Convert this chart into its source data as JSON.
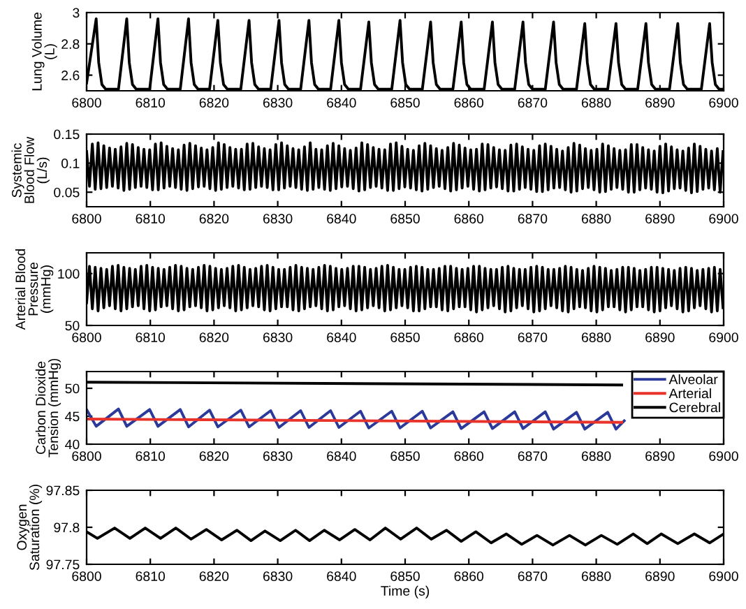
{
  "chart_data": [
    {
      "type": "line",
      "ylabel": "Lung Volume\n(L)",
      "xlim": [
        6800,
        6900
      ],
      "xticks": [
        6800,
        6810,
        6820,
        6830,
        6840,
        6850,
        6860,
        6870,
        6880,
        6890,
        6900
      ],
      "ylim": [
        2.5,
        3
      ],
      "yticks": [
        2.6,
        2.8,
        3
      ],
      "series": [
        {
          "color": "#000000",
          "x": [
            6800,
            6801.5,
            6801.9,
            6802.4,
            6803.0,
            6805.0,
            6806.3,
            6806.7,
            6807.2,
            6807.8,
            6809.9,
            6811.2,
            6811.6,
            6812.1,
            6812.7,
            6814.7,
            6816.0,
            6816.4,
            6816.9,
            6817.5,
            6819.3,
            6820.6,
            6821.0,
            6821.5,
            6822.1,
            6824.2,
            6825.5,
            6825.9,
            6826.4,
            6827.0,
            6828.9,
            6830.2,
            6830.6,
            6831.1,
            6831.7,
            6833.6,
            6834.9,
            6835.3,
            6835.8,
            6836.4,
            6838.3,
            6839.6,
            6840.0,
            6840.5,
            6841.1,
            6843.0,
            6844.3,
            6844.7,
            6845.2,
            6845.8,
            6847.9,
            6849.2,
            6849.6,
            6850.1,
            6850.7,
            6852.7,
            6854.0,
            6854.4,
            6854.9,
            6855.5,
            6857.5,
            6858.8,
            6859.2,
            6859.7,
            6860.3,
            6862.4,
            6863.7,
            6864.1,
            6864.6,
            6865.2,
            6867.2,
            6868.5,
            6868.9,
            6869.4,
            6870.0,
            6872.0,
            6873.3,
            6873.7,
            6874.2,
            6874.8,
            6876.9,
            6878.2,
            6878.6,
            6879.1,
            6879.7,
            6881.8,
            6883.1,
            6883.5,
            6884.0,
            6884.6,
            6886.5,
            6887.8,
            6888.2,
            6888.7,
            6889.3,
            6891.5,
            6892.8,
            6893.2,
            6893.7,
            6894.3,
            6896.5,
            6897.8,
            6898.2,
            6898.7,
            6899.3,
            6900
          ],
          "values": [
            2.55,
            2.96,
            2.68,
            2.54,
            2.51,
            2.51,
            2.96,
            2.68,
            2.54,
            2.51,
            2.51,
            2.96,
            2.68,
            2.54,
            2.51,
            2.51,
            2.96,
            2.68,
            2.54,
            2.51,
            2.51,
            2.95,
            2.68,
            2.54,
            2.51,
            2.51,
            2.95,
            2.68,
            2.54,
            2.51,
            2.51,
            2.95,
            2.68,
            2.54,
            2.51,
            2.51,
            2.95,
            2.68,
            2.54,
            2.51,
            2.51,
            2.95,
            2.68,
            2.54,
            2.51,
            2.51,
            2.94,
            2.68,
            2.54,
            2.51,
            2.51,
            2.95,
            2.68,
            2.54,
            2.51,
            2.51,
            2.94,
            2.68,
            2.54,
            2.51,
            2.51,
            2.94,
            2.68,
            2.54,
            2.51,
            2.51,
            2.94,
            2.68,
            2.54,
            2.51,
            2.51,
            2.94,
            2.68,
            2.54,
            2.51,
            2.51,
            2.94,
            2.68,
            2.54,
            2.51,
            2.51,
            2.93,
            2.68,
            2.54,
            2.51,
            2.51,
            2.93,
            2.68,
            2.54,
            2.51,
            2.51,
            2.93,
            2.68,
            2.54,
            2.51,
            2.51,
            2.93,
            2.68,
            2.54,
            2.51,
            2.51,
            2.93,
            2.68,
            2.54,
            2.51,
            2.51
          ]
        }
      ]
    },
    {
      "type": "line",
      "ylabel": "Systemic\nBlood Flow\n(L/s)",
      "xlim": [
        6800,
        6900
      ],
      "xticks": [
        6800,
        6810,
        6820,
        6830,
        6840,
        6850,
        6860,
        6870,
        6880,
        6890,
        6900
      ],
      "ylim": [
        0.025,
        0.15
      ],
      "yticks": [
        0.05,
        0.1,
        0.15
      ],
      "series": [
        {
          "color": "#000000",
          "x": [
            6800,
            6800.45,
            6800.9,
            6801.35,
            6801.8,
            6802.25,
            6802.7,
            6803.15,
            6803.6,
            6804.05,
            6804.5,
            6804.95,
            6805.4,
            6805.85,
            6806.3,
            6806.75,
            6807.2,
            6807.65,
            6808.1,
            6808.55,
            6809,
            6809.45,
            6809.9,
            6810.35,
            6810.8,
            6811.25,
            6811.7,
            6812.15,
            6812.6,
            6813.05,
            6813.5,
            6813.95,
            6814.4,
            6814.85,
            6815.3,
            6815.75,
            6816.2,
            6816.65,
            6817.1,
            6817.55,
            6818,
            6818.45,
            6818.9,
            6819.35,
            6819.8,
            6820.25,
            6820.7,
            6821.15,
            6821.6,
            6822.05,
            6822.5,
            6822.95,
            6823.4,
            6823.85,
            6824.3,
            6824.75,
            6825.2,
            6825.65,
            6826.1,
            6826.55,
            6827,
            6827.45,
            6827.9,
            6828.35,
            6828.8,
            6829.25,
            6829.7,
            6830.15,
            6830.6,
            6831.05,
            6831.5,
            6831.95,
            6832.4,
            6832.85,
            6833.3,
            6833.75,
            6834.2,
            6834.65,
            6835.1,
            6835.55,
            6836,
            6836.45,
            6836.9,
            6837.35,
            6837.8,
            6838.25,
            6838.7,
            6839.15,
            6839.6,
            6840.05,
            6840.5,
            6840.95,
            6841.4,
            6841.85,
            6842.3,
            6842.75,
            6843.2,
            6843.65,
            6844.1,
            6844.55,
            6845,
            6845.45,
            6845.9,
            6846.35,
            6846.8,
            6847.25,
            6847.7,
            6848.15,
            6848.6,
            6849.05,
            6849.5,
            6849.95,
            6850.4,
            6850.85,
            6851.3,
            6851.75,
            6852.2,
            6852.65,
            6853.1,
            6853.55,
            6854,
            6854.45,
            6854.9,
            6855.35,
            6855.8,
            6856.25,
            6856.7,
            6857.15,
            6857.6,
            6858.05,
            6858.5,
            6858.95,
            6859.4,
            6859.85,
            6860.3,
            6860.75,
            6861.2,
            6861.65,
            6862.1,
            6862.55,
            6863,
            6863.45,
            6863.9,
            6864.35,
            6864.8,
            6865.25,
            6865.7,
            6866.15,
            6866.6,
            6867.05,
            6867.5,
            6867.95,
            6868.4,
            6868.85,
            6869.3,
            6869.75,
            6870.2,
            6870.65,
            6871.1,
            6871.55,
            6872,
            6872.45,
            6872.9,
            6873.35,
            6873.8,
            6874.25,
            6874.7,
            6875.15,
            6875.6,
            6876.05,
            6876.5,
            6876.95,
            6877.4,
            6877.85,
            6878.3,
            6878.75,
            6879.2,
            6879.65,
            6880.1,
            6880.55,
            6881,
            6881.45,
            6881.9,
            6882.35,
            6882.8,
            6883.25,
            6883.7,
            6884.15,
            6884.6,
            6885.05,
            6885.5,
            6885.95,
            6886.4,
            6886.85,
            6887.3,
            6887.75,
            6888.2,
            6888.65,
            6889.1,
            6889.55,
            6890,
            6890.45,
            6890.9,
            6891.35,
            6891.8,
            6892.25,
            6892.7,
            6893.15,
            6893.6,
            6894.05,
            6894.5,
            6894.95,
            6895.4,
            6895.85,
            6896.3,
            6896.75,
            6897.2,
            6897.65,
            6898.1,
            6898.55,
            6899,
            6899.45,
            6899.9
          ],
          "values": [
            0.12,
            0.06,
            0.133,
            0.055,
            0.135,
            0.056,
            0.13,
            0.058,
            0.126,
            0.06,
            0.124,
            0.057,
            0.128,
            0.053,
            0.134,
            0.055,
            0.132,
            0.058,
            0.127,
            0.06,
            0.124,
            0.058,
            0.123,
            0.054,
            0.133,
            0.054,
            0.135,
            0.057,
            0.129,
            0.06,
            0.125,
            0.058,
            0.123,
            0.055,
            0.131,
            0.053,
            0.134,
            0.056,
            0.13,
            0.059,
            0.126,
            0.06,
            0.123,
            0.056,
            0.127,
            0.053,
            0.135,
            0.055,
            0.132,
            0.058,
            0.127,
            0.06,
            0.124,
            0.057,
            0.124,
            0.054,
            0.133,
            0.055,
            0.134,
            0.058,
            0.128,
            0.06,
            0.125,
            0.058,
            0.123,
            0.054,
            0.132,
            0.054,
            0.135,
            0.057,
            0.13,
            0.06,
            0.125,
            0.058,
            0.123,
            0.055,
            0.128,
            0.053,
            0.135,
            0.055,
            0.124,
            0.058,
            0.123,
            0.055,
            0.13,
            0.053,
            0.134,
            0.056,
            0.13,
            0.059,
            0.125,
            0.06,
            0.122,
            0.056,
            0.126,
            0.052,
            0.135,
            0.054,
            0.132,
            0.058,
            0.127,
            0.06,
            0.124,
            0.057,
            0.123,
            0.053,
            0.133,
            0.053,
            0.135,
            0.056,
            0.129,
            0.059,
            0.124,
            0.057,
            0.122,
            0.054,
            0.13,
            0.052,
            0.134,
            0.055,
            0.13,
            0.058,
            0.125,
            0.06,
            0.122,
            0.056,
            0.127,
            0.052,
            0.134,
            0.054,
            0.131,
            0.057,
            0.126,
            0.06,
            0.123,
            0.055,
            0.124,
            0.052,
            0.133,
            0.054,
            0.132,
            0.057,
            0.127,
            0.059,
            0.123,
            0.056,
            0.122,
            0.052,
            0.131,
            0.052,
            0.133,
            0.055,
            0.128,
            0.058,
            0.124,
            0.055,
            0.122,
            0.051,
            0.13,
            0.051,
            0.133,
            0.054,
            0.129,
            0.057,
            0.124,
            0.058,
            0.121,
            0.054,
            0.127,
            0.05,
            0.134,
            0.052,
            0.131,
            0.056,
            0.125,
            0.058,
            0.122,
            0.054,
            0.124,
            0.05,
            0.133,
            0.051,
            0.13,
            0.055,
            0.125,
            0.058,
            0.122,
            0.055,
            0.123,
            0.05,
            0.132,
            0.05,
            0.132,
            0.054,
            0.127,
            0.057,
            0.123,
            0.055,
            0.121,
            0.05,
            0.129,
            0.049,
            0.133,
            0.052,
            0.128,
            0.056,
            0.123,
            0.057,
            0.121,
            0.053,
            0.126,
            0.049,
            0.133,
            0.051,
            0.129,
            0.055,
            0.124,
            0.057,
            0.121,
            0.054,
            0.125,
            0.05,
            0.12
          ]
        }
      ]
    },
    {
      "type": "line",
      "ylabel": "Arterial Blood\nPressure\n(mmHg)",
      "xlim": [
        6800,
        6900
      ],
      "xticks": [
        6800,
        6810,
        6820,
        6830,
        6840,
        6850,
        6860,
        6870,
        6880,
        6890,
        6900
      ],
      "ylim": [
        50,
        120
      ],
      "yticks": [
        50,
        100
      ],
      "series": [
        {
          "color": "#000000",
          "x": [
            6800,
            6800.45,
            6800.9,
            6801.35,
            6801.8,
            6802.25,
            6802.7,
            6803.15,
            6803.6,
            6804.05,
            6804.5,
            6804.95,
            6805.4,
            6805.85,
            6806.3,
            6806.75,
            6807.2,
            6807.65,
            6808.1,
            6808.55,
            6809,
            6809.45,
            6809.9,
            6810.35,
            6810.8,
            6811.25,
            6811.7,
            6812.15,
            6812.6,
            6813.05,
            6813.5,
            6813.95,
            6814.4,
            6814.85,
            6815.3,
            6815.75,
            6816.2,
            6816.65,
            6817.1,
            6817.55,
            6818,
            6818.45,
            6818.9,
            6819.35,
            6819.8,
            6820.25,
            6820.7,
            6821.15,
            6821.6,
            6822.05,
            6822.5,
            6822.95,
            6823.4,
            6823.85,
            6824.3,
            6824.75,
            6825.2,
            6825.65,
            6826.1,
            6826.55,
            6827,
            6827.45,
            6827.9,
            6828.35,
            6828.8,
            6829.25,
            6829.7,
            6830.15,
            6830.6,
            6831.05,
            6831.5,
            6831.95,
            6832.4,
            6832.85,
            6833.3,
            6833.75,
            6834.2,
            6834.65,
            6835.1,
            6835.55,
            6836,
            6836.45,
            6836.9,
            6837.35,
            6837.8,
            6838.25,
            6838.7,
            6839.15,
            6839.6,
            6840.05,
            6840.5,
            6840.95,
            6841.4,
            6841.85,
            6842.3,
            6842.75,
            6843.2,
            6843.65,
            6844.1,
            6844.55,
            6845,
            6845.45,
            6845.9,
            6846.35,
            6846.8,
            6847.25,
            6847.7,
            6848.15,
            6848.6,
            6849.05,
            6849.5,
            6849.95,
            6850.4,
            6850.85,
            6851.3,
            6851.75,
            6852.2,
            6852.65,
            6853.1,
            6853.55,
            6854,
            6854.45,
            6854.9,
            6855.35,
            6855.8,
            6856.25,
            6856.7,
            6857.15,
            6857.6,
            6858.05,
            6858.5,
            6858.95,
            6859.4,
            6859.85,
            6860.3,
            6860.75,
            6861.2,
            6861.65,
            6862.1,
            6862.55,
            6863,
            6863.45,
            6863.9,
            6864.35,
            6864.8,
            6865.25,
            6865.7,
            6866.15,
            6866.6,
            6867.05,
            6867.5,
            6867.95,
            6868.4,
            6868.85,
            6869.3,
            6869.75,
            6870.2,
            6870.65,
            6871.1,
            6871.55,
            6872,
            6872.45,
            6872.9,
            6873.35,
            6873.8,
            6874.25,
            6874.7,
            6875.15,
            6875.6,
            6876.05,
            6876.5,
            6876.95,
            6877.4,
            6877.85,
            6878.3,
            6878.75,
            6879.2,
            6879.65,
            6880.1,
            6880.55,
            6881,
            6881.45,
            6881.9,
            6882.35,
            6882.8,
            6883.25,
            6883.7,
            6884.15,
            6884.6,
            6885.05,
            6885.5,
            6885.95,
            6886.4,
            6886.85,
            6887.3,
            6887.75,
            6888.2,
            6888.65,
            6889.1,
            6889.55,
            6890,
            6890.45,
            6890.9,
            6891.35,
            6891.8,
            6892.25,
            6892.7,
            6893.15,
            6893.6,
            6894.05,
            6894.5,
            6894.95,
            6895.4,
            6895.85,
            6896.3,
            6896.75,
            6897.2,
            6897.65,
            6898.1,
            6898.55,
            6899,
            6899.45,
            6899.9
          ],
          "values": [
            72,
            107,
            66,
            106,
            64,
            105,
            67,
            104,
            69,
            107,
            66,
            108,
            64,
            106,
            66,
            105,
            68,
            104,
            69,
            107,
            66,
            108,
            64,
            106,
            65,
            105,
            68,
            104,
            69,
            106,
            66,
            108,
            64,
            107,
            65,
            105,
            68,
            104,
            69,
            106,
            67,
            108,
            64,
            107,
            65,
            105,
            67,
            104,
            69,
            105,
            67,
            107,
            64,
            108,
            65,
            106,
            67,
            104,
            69,
            105,
            68,
            107,
            65,
            108,
            64,
            106,
            66,
            104,
            68,
            104,
            68,
            106,
            65,
            108,
            64,
            106,
            66,
            105,
            68,
            104,
            69,
            106,
            66,
            108,
            64,
            107,
            65,
            105,
            68,
            104,
            69,
            105,
            66,
            107,
            64,
            107,
            65,
            106,
            67,
            104,
            69,
            105,
            67,
            107,
            64,
            108,
            65,
            106,
            67,
            104,
            69,
            104,
            67,
            106,
            64,
            107,
            64,
            106,
            66,
            104,
            68,
            104,
            68,
            105,
            65,
            107,
            64,
            107,
            66,
            105,
            68,
            104,
            68,
            105,
            65,
            107,
            63,
            107,
            65,
            105,
            67,
            104,
            69,
            104,
            66,
            106,
            63,
            107,
            64,
            105,
            67,
            104,
            69,
            104,
            66,
            106,
            63,
            107,
            64,
            106,
            66,
            104,
            69,
            104,
            67,
            105,
            64,
            107,
            63,
            106,
            66,
            104,
            68,
            103,
            67,
            105,
            64,
            107,
            63,
            106,
            65,
            105,
            68,
            103,
            68,
            104,
            65,
            106,
            63,
            106,
            65,
            105,
            68,
            103,
            68,
            104,
            65,
            106,
            63,
            106,
            64,
            105,
            67,
            104,
            69,
            103,
            66,
            105,
            63,
            106,
            64,
            105,
            67,
            103,
            69,
            104,
            66,
            105,
            63,
            106,
            64,
            104,
            67
          ]
        }
      ]
    },
    {
      "type": "line",
      "ylabel": "Carbon Dioxide\nTension (mmHg)",
      "xlim": [
        6800,
        6900
      ],
      "xticks": [
        6800,
        6810,
        6820,
        6830,
        6840,
        6850,
        6860,
        6870,
        6880,
        6890,
        6900
      ],
      "ylim": [
        40,
        53
      ],
      "yticks": [
        40,
        45,
        50
      ],
      "legend": "top right",
      "series": [
        {
          "name": "Alveolar",
          "color": "#2b3a9a",
          "x": [
            6800,
            6801.5,
            6805.0,
            6806.3,
            6809.9,
            6811.2,
            6814.7,
            6816.0,
            6819.3,
            6820.6,
            6824.2,
            6825.5,
            6828.9,
            6830.2,
            6833.6,
            6834.9,
            6838.3,
            6839.6,
            6843.0,
            6844.3,
            6847.9,
            6849.2,
            6852.7,
            6854.0,
            6857.5,
            6858.8,
            6862.4,
            6863.7,
            6867.2,
            6868.5,
            6872.0,
            6873.3,
            6876.9,
            6878.2,
            6881.8,
            6883.1,
            6884.4
          ],
          "values": [
            46.2,
            43.2,
            46.3,
            43.2,
            46.2,
            43.2,
            46.2,
            43.1,
            46.1,
            43.1,
            46.1,
            43.1,
            46.0,
            43.0,
            46.0,
            43.0,
            46.0,
            43.0,
            45.9,
            42.9,
            45.9,
            42.9,
            45.9,
            42.9,
            45.8,
            42.8,
            45.8,
            42.8,
            45.8,
            42.8,
            45.8,
            42.7,
            45.7,
            42.7,
            45.7,
            42.7,
            44.2
          ]
        },
        {
          "name": "Arterial",
          "color": "#e8322a",
          "x": [
            6800,
            6884
          ],
          "values": [
            44.5,
            43.9
          ]
        },
        {
          "name": "Cerebral",
          "color": "#000000",
          "x": [
            6800,
            6884
          ],
          "values": [
            51.1,
            50.6
          ]
        }
      ]
    },
    {
      "type": "line",
      "ylabel": "Oxygen\nSaturation (%)",
      "xlabel": "Time (s)",
      "xlim": [
        6800,
        6900
      ],
      "xticks": [
        6800,
        6810,
        6820,
        6830,
        6840,
        6850,
        6860,
        6870,
        6880,
        6890,
        6900
      ],
      "ylim": [
        97.75,
        97.85
      ],
      "yticks": [
        97.75,
        97.8,
        97.85
      ],
      "series": [
        {
          "color": "#000000",
          "x": [
            6800,
            6801.7,
            6804.4,
            6806.8,
            6809.2,
            6811.6,
            6814.0,
            6816.4,
            6818.8,
            6821.2,
            6823.6,
            6825.8,
            6828.0,
            6830.4,
            6832.8,
            6835.0,
            6837.3,
            6839.7,
            6842.1,
            6844.5,
            6846.9,
            6849.3,
            6851.8,
            6854.1,
            6856.5,
            6858.8,
            6861.1,
            6863.5,
            6865.9,
            6868.3,
            6870.7,
            6873.2,
            6875.8,
            6878.3,
            6880.8,
            6883.3,
            6885.8,
            6888.0,
            6890.2,
            6892.8,
            6895.4,
            6897.8,
            6900
          ],
          "values": [
            97.794,
            97.785,
            97.799,
            97.785,
            97.799,
            97.785,
            97.799,
            97.784,
            97.797,
            97.783,
            97.796,
            97.782,
            97.795,
            97.782,
            97.796,
            97.782,
            97.796,
            97.783,
            97.797,
            97.783,
            97.799,
            97.784,
            97.799,
            97.784,
            97.796,
            97.781,
            97.794,
            97.779,
            97.791,
            97.777,
            97.789,
            97.776,
            97.789,
            97.776,
            97.789,
            97.777,
            97.791,
            97.778,
            97.791,
            97.778,
            97.791,
            97.779,
            97.791
          ]
        }
      ]
    }
  ]
}
